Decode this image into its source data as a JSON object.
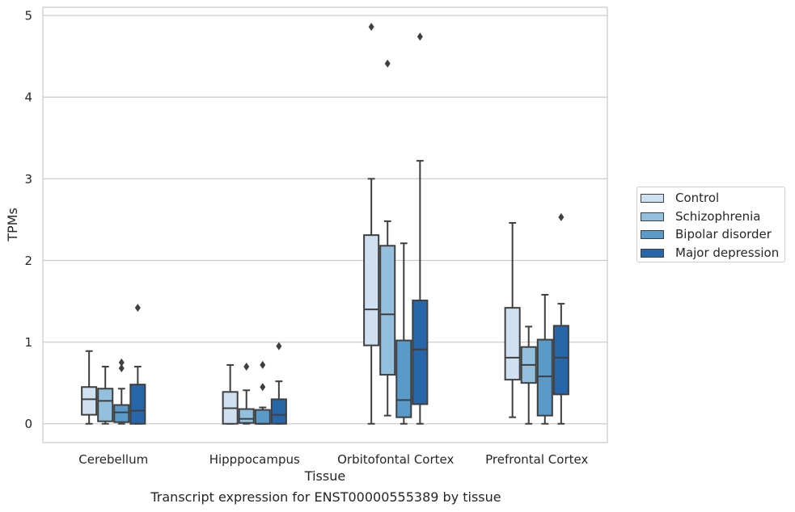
{
  "chart_data": {
    "type": "box",
    "xlabel": "Tissue",
    "ylabel": "TPMs",
    "caption": "Transcript expression for ENST00000555389 by tissue",
    "ylim": [
      -0.23,
      5.1
    ],
    "yticks": [
      0,
      1,
      2,
      3,
      4,
      5
    ],
    "grid": "horizontal",
    "legend": "right",
    "categories": [
      "Cerebellum",
      "Hipppocampus",
      "Orbitofontal Cortex",
      "Prefrontal Cortex"
    ],
    "series": [
      {
        "name": "Control",
        "color": "#cfe0f1",
        "boxes": [
          {
            "whislo": 0.0,
            "q1": 0.11,
            "med": 0.3,
            "q3": 0.45,
            "whishi": 0.89,
            "fliers": []
          },
          {
            "whislo": 0.0,
            "q1": 0.0,
            "med": 0.19,
            "q3": 0.39,
            "whishi": 0.72,
            "fliers": []
          },
          {
            "whislo": 0.0,
            "q1": 0.96,
            "med": 1.4,
            "q3": 2.31,
            "whishi": 3.0,
            "fliers": [
              4.86
            ]
          },
          {
            "whislo": 0.08,
            "q1": 0.54,
            "med": 0.81,
            "q3": 1.42,
            "whishi": 2.46,
            "fliers": []
          }
        ]
      },
      {
        "name": "Schizophrenia",
        "color": "#93c0dc",
        "boxes": [
          {
            "whislo": 0.0,
            "q1": 0.03,
            "med": 0.28,
            "q3": 0.43,
            "whishi": 0.7,
            "fliers": []
          },
          {
            "whislo": 0.0,
            "q1": 0.01,
            "med": 0.06,
            "q3": 0.18,
            "whishi": 0.41,
            "fliers": [
              0.7
            ]
          },
          {
            "whislo": 0.1,
            "q1": 0.6,
            "med": 1.34,
            "q3": 2.18,
            "whishi": 2.48,
            "fliers": [
              4.41
            ]
          },
          {
            "whislo": 0.0,
            "q1": 0.5,
            "med": 0.72,
            "q3": 0.94,
            "whishi": 1.19,
            "fliers": []
          }
        ]
      },
      {
        "name": "Bipolar disorder",
        "color": "#5a9ac9",
        "boxes": [
          {
            "whislo": 0.0,
            "q1": 0.02,
            "med": 0.14,
            "q3": 0.23,
            "whishi": 0.43,
            "fliers": [
              0.68,
              0.75
            ]
          },
          {
            "whislo": 0.0,
            "q1": 0.0,
            "med": 0.0,
            "q3": 0.17,
            "whishi": 0.2,
            "fliers": [
              0.45,
              0.72
            ]
          },
          {
            "whislo": 0.0,
            "q1": 0.08,
            "med": 0.29,
            "q3": 1.02,
            "whishi": 2.21,
            "fliers": []
          },
          {
            "whislo": 0.0,
            "q1": 0.1,
            "med": 0.58,
            "q3": 1.03,
            "whishi": 1.58,
            "fliers": []
          }
        ]
      },
      {
        "name": "Major depression",
        "color": "#2767a9",
        "boxes": [
          {
            "whislo": 0.0,
            "q1": 0.0,
            "med": 0.16,
            "q3": 0.48,
            "whishi": 0.7,
            "fliers": [
              1.42
            ]
          },
          {
            "whislo": 0.0,
            "q1": 0.0,
            "med": 0.11,
            "q3": 0.3,
            "whishi": 0.52,
            "fliers": [
              0.95
            ]
          },
          {
            "whislo": 0.0,
            "q1": 0.24,
            "med": 0.91,
            "q3": 1.51,
            "whishi": 3.22,
            "fliers": [
              4.74
            ]
          },
          {
            "whislo": 0.0,
            "q1": 0.36,
            "med": 0.81,
            "q3": 1.2,
            "whishi": 1.47,
            "fliers": [
              2.53
            ]
          }
        ]
      }
    ]
  }
}
